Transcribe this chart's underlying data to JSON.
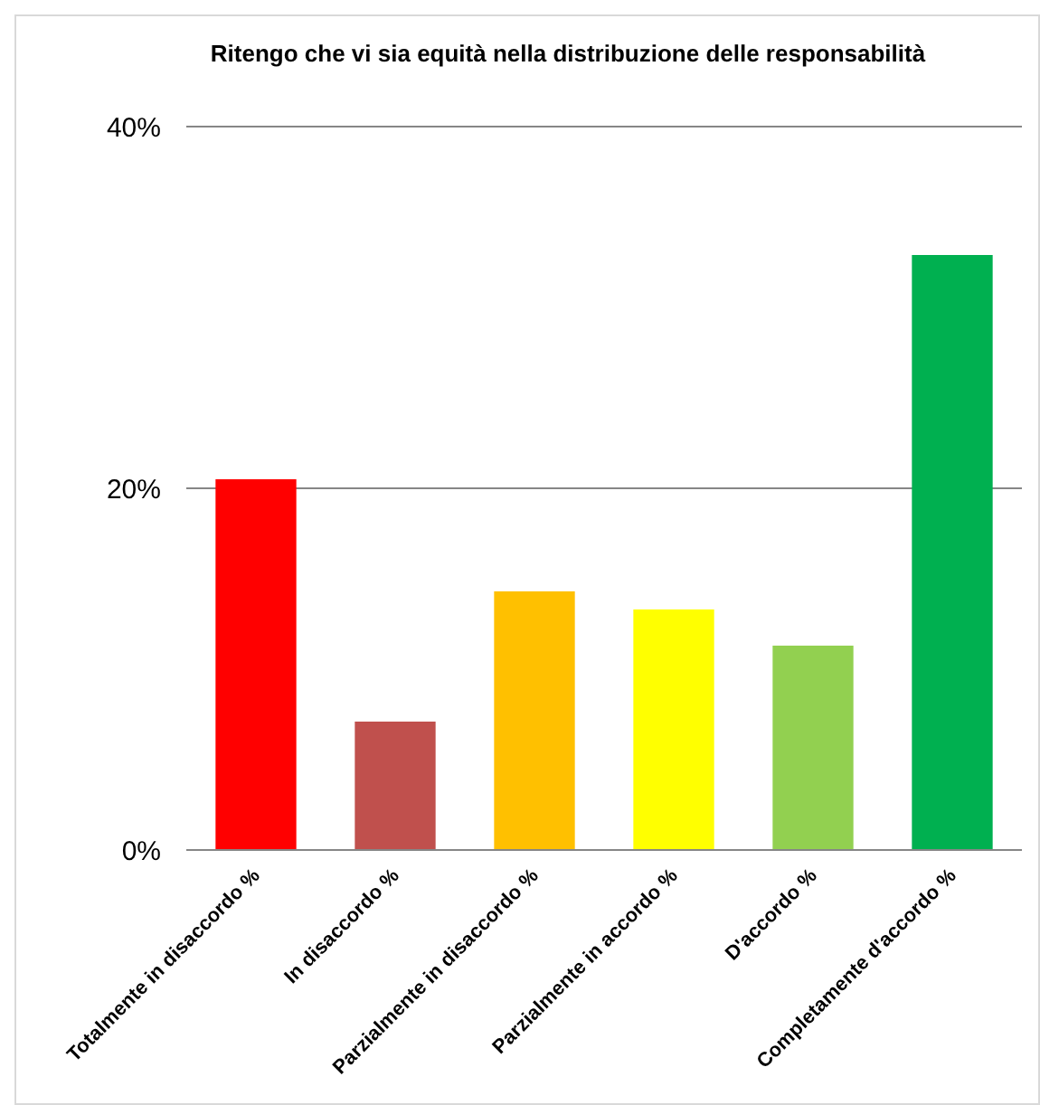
{
  "chart_data": {
    "type": "bar",
    "title": "Ritengo che vi sia equità nella distribuzione delle responsabilità",
    "categories": [
      "Totalmente in disaccordo %",
      "In disaccordo %",
      "Parzialmente in disaccordo %",
      "Parzialmente in accordo %",
      "D'accordo %",
      "Completamente d'accordo %"
    ],
    "values": [
      20.5,
      7.1,
      14.3,
      13.3,
      11.3,
      32.9
    ],
    "colors": [
      "#ff0000",
      "#c0504d",
      "#ffc000",
      "#ffff00",
      "#92d050",
      "#00b050"
    ],
    "ylim": [
      0,
      40
    ],
    "yticks": [
      {
        "value": 0,
        "label": "0%"
      },
      {
        "value": 20,
        "label": "20%"
      },
      {
        "value": 40,
        "label": "40%"
      }
    ],
    "grid": "y"
  }
}
